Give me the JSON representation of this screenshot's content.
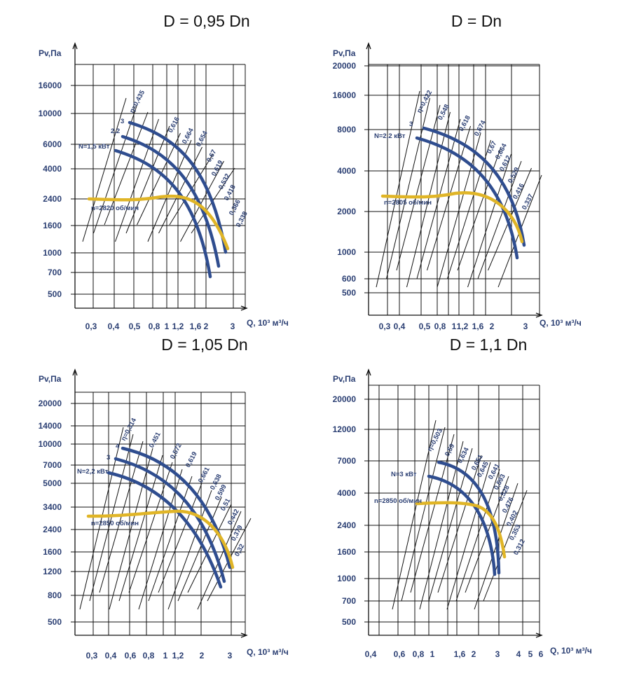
{
  "chart_data": [
    {
      "type": "line",
      "title": "D = 0,95 Dn",
      "ylabel": "Pv,Па",
      "xlabel": "Q, 10³ м³/ч",
      "yticks": [
        "16000",
        "10000",
        "6000",
        "4000",
        "2400",
        "1600",
        "1000",
        "700",
        "500"
      ],
      "xticks": [
        "0,3",
        "0,4",
        "0,5",
        "0,8",
        "1",
        "1,2",
        "1,6",
        "2",
        "3"
      ],
      "power_label": "N=1,5 кВт",
      "power_values": [
        "3",
        "2,2"
      ],
      "speed_label": "n=2820 об/мин",
      "efficiency_labels": [
        "η=0,435",
        "0,616",
        "0,664",
        "0,654",
        "0,67",
        "0,619",
        "0,532",
        "0,418",
        "0,366",
        "0,338"
      ],
      "colors": {
        "grid": "#111111",
        "curve": "#2f4d8f",
        "pressure": "#e0b527"
      }
    },
    {
      "type": "line",
      "title": "D = Dn",
      "ylabel": "Pv,Па",
      "xlabel": "Q, 10³ м³/ч",
      "yticks": [
        "20000",
        "16000",
        "8000",
        "4000",
        "2000",
        "1000",
        "600",
        "500"
      ],
      "xticks": [
        "0,3",
        "0,4",
        "0,5",
        "0,8",
        "1",
        "1,2",
        "1,6",
        "2",
        "3"
      ],
      "power_label": "N=2,2 кВт",
      "power_values": [
        "3"
      ],
      "speed_label": "n=2805 об/мин",
      "efficiency_labels": [
        "η=0,422",
        "0,548",
        "0,618",
        "0,674",
        "0,67",
        "0,664",
        "0,612",
        "0,529",
        "0,416",
        "0,337"
      ],
      "colors": {
        "grid": "#111111",
        "curve": "#2f4d8f",
        "pressure": "#e0b527"
      }
    },
    {
      "type": "line",
      "title": "D = 1,05 Dn",
      "ylabel": "Pv,Па",
      "xlabel": "Q, 10³ м³/ч",
      "yticks": [
        "20000",
        "14000",
        "10000",
        "7000",
        "5000",
        "3400",
        "2400",
        "1600",
        "1200",
        "800",
        "500"
      ],
      "xticks": [
        "0,3",
        "0,4",
        "0,6",
        "0,8",
        "1",
        "1,2",
        "2",
        "3"
      ],
      "power_label": "N=2,2 кВт",
      "power_values": [
        "4",
        "3"
      ],
      "speed_label": "n=2850 об/мин",
      "efficiency_labels": [
        "η=0,314",
        "0,451",
        "0,572",
        "0,619",
        "0,661",
        "0,638",
        "0,599",
        "0,51",
        "0,442",
        "0,379",
        "0,32"
      ],
      "colors": {
        "grid": "#111111",
        "curve": "#2f4d8f",
        "pressure": "#e0b527"
      }
    },
    {
      "type": "line",
      "title": "D = 1,1 Dn",
      "ylabel": "Pv,Па",
      "xlabel": "Q, 10³ м³/ч",
      "yticks": [
        "20000",
        "12000",
        "7000",
        "4000",
        "2400",
        "1600",
        "1000",
        "700",
        "500"
      ],
      "xticks": [
        "0,4",
        "0,6",
        "0,8",
        "1",
        "1,6",
        "2",
        "3",
        "4",
        "5",
        "6"
      ],
      "power_label": "N=3 кВт",
      "power_values": [],
      "speed_label": "n=2850 об/мин",
      "efficiency_labels": [
        "η=0,503",
        "0,59",
        "0,634",
        "0,651",
        "0,645",
        "0,641",
        "0,593",
        "0,528",
        "0,476",
        "0,402",
        "0,353",
        "0,312"
      ],
      "colors": {
        "grid": "#111111",
        "curve": "#2f4d8f",
        "pressure": "#e0b527"
      }
    }
  ]
}
